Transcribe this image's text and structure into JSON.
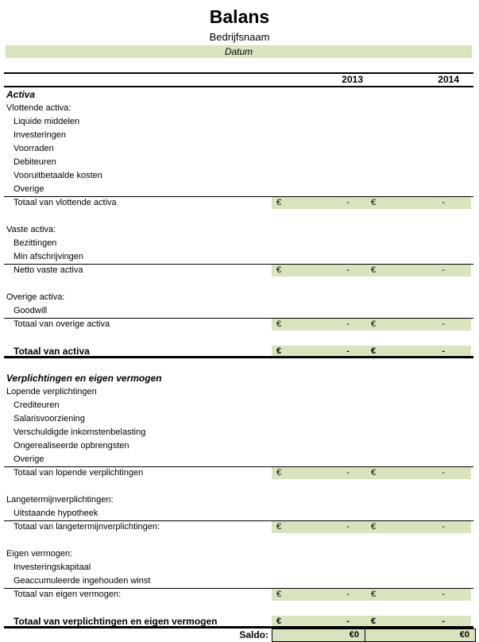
{
  "header": {
    "title": "Balans",
    "company": "Bedrijfsnaam",
    "date_label": "Datum",
    "years": [
      "2013",
      "2014"
    ]
  },
  "currency": {
    "symbol": "€",
    "empty_amount": "-"
  },
  "colors": {
    "highlight": "#D7E4BD",
    "border": "#000000"
  },
  "rows": [
    {
      "kind": "section",
      "label": "Activa"
    },
    {
      "kind": "group",
      "label": "Vlottende activa:"
    },
    {
      "kind": "item",
      "label": "Liquide middelen"
    },
    {
      "kind": "item",
      "label": "Investeringen"
    },
    {
      "kind": "item",
      "label": "Voorraden"
    },
    {
      "kind": "item",
      "label": "Debiteuren"
    },
    {
      "kind": "item",
      "label": "Vooruitbetaalde kosten"
    },
    {
      "kind": "item",
      "label": "Overige"
    },
    {
      "kind": "total",
      "label": "Totaal van vlottende activa",
      "rule_above": true,
      "amounts": [
        "-",
        "-"
      ]
    },
    {
      "kind": "blank",
      "label": ""
    },
    {
      "kind": "group",
      "label": "Vaste activa:"
    },
    {
      "kind": "item",
      "label": "Bezittingen"
    },
    {
      "kind": "item",
      "label": "Min afschrijvingen"
    },
    {
      "kind": "total",
      "label": "Netto vaste activa",
      "rule_above": true,
      "amounts": [
        "-",
        "-"
      ]
    },
    {
      "kind": "blank",
      "label": ""
    },
    {
      "kind": "group",
      "label": "Overige activa:"
    },
    {
      "kind": "item",
      "label": "Goodwill"
    },
    {
      "kind": "total",
      "label": "Totaal van overige activa",
      "rule_above": true,
      "amounts": [
        "-",
        "-"
      ]
    },
    {
      "kind": "blank",
      "label": ""
    },
    {
      "kind": "total_bold",
      "label": "Totaal van activa",
      "thick_below": true,
      "amounts": [
        "-",
        "-"
      ]
    },
    {
      "kind": "blank",
      "label": ""
    },
    {
      "kind": "section",
      "label": "Verplichtingen en eigen vermogen"
    },
    {
      "kind": "group",
      "label": "Lopende verplichtingen"
    },
    {
      "kind": "item",
      "label": "Crediteuren"
    },
    {
      "kind": "item",
      "label": "Salarisvoorziening"
    },
    {
      "kind": "item",
      "label": "Verschuldigde inkomstenbelasting"
    },
    {
      "kind": "item",
      "label": "Ongerealiseerde opbrengsten"
    },
    {
      "kind": "item",
      "label": "Overige"
    },
    {
      "kind": "total",
      "label": "Totaal van lopende verplichtingen",
      "rule_above": true,
      "amounts": [
        "-",
        "-"
      ]
    },
    {
      "kind": "blank",
      "label": ""
    },
    {
      "kind": "group",
      "label": "Langetermijnverplichtingen:"
    },
    {
      "kind": "item",
      "label": "Uitstaande hypotheek"
    },
    {
      "kind": "total",
      "label": "Totaal van langetermijnverplichtingen:",
      "rule_above": true,
      "amounts": [
        "-",
        "-"
      ]
    },
    {
      "kind": "blank",
      "label": ""
    },
    {
      "kind": "group",
      "label": "Eigen vermogen:"
    },
    {
      "kind": "item",
      "label": "Investeringskapitaal"
    },
    {
      "kind": "item",
      "label": "Geaccumuleerde ingehouden winst"
    },
    {
      "kind": "total",
      "label": "Totaal van eigen vermogen:",
      "rule_above": true,
      "amounts": [
        "-",
        "-"
      ]
    },
    {
      "kind": "blank",
      "label": ""
    },
    {
      "kind": "total_bold",
      "label": "Totaal van verplichtingen en eigen vermogen",
      "thick_below": true,
      "amounts": [
        "-",
        "-"
      ]
    }
  ],
  "saldo": {
    "label": "Saldo:",
    "values": [
      "€0",
      "€0"
    ]
  }
}
